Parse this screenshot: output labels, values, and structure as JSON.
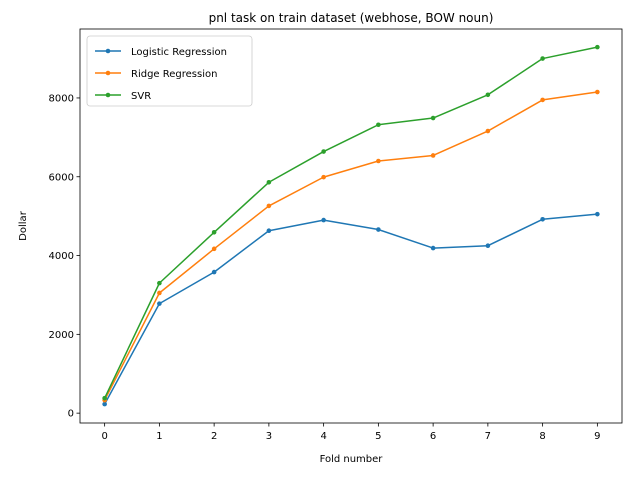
{
  "chart_data": {
    "type": "line",
    "title": "pnl task on train dataset (webhose, BOW noun)",
    "xlabel": "Fold number",
    "ylabel": "Dollar",
    "x": [
      0,
      1,
      2,
      3,
      4,
      5,
      6,
      7,
      8,
      9
    ],
    "xlim": [
      -0.45,
      9.45
    ],
    "ylim": [
      -250,
      9750
    ],
    "xticks": [
      0,
      1,
      2,
      3,
      4,
      5,
      6,
      7,
      8,
      9
    ],
    "yticks": [
      0,
      2000,
      4000,
      6000,
      8000
    ],
    "grid": false,
    "legend_position": "top-left",
    "series": [
      {
        "name": "Logistic Regression",
        "color": "#1f77b4",
        "values": [
          230,
          2780,
          3580,
          4630,
          4900,
          4660,
          4190,
          4250,
          4920,
          5050
        ]
      },
      {
        "name": "Ridge Regression",
        "color": "#ff7f0e",
        "values": [
          330,
          3050,
          4170,
          5260,
          5990,
          6400,
          6540,
          7160,
          7950,
          8150
        ]
      },
      {
        "name": "SVR",
        "color": "#2ca02c",
        "values": [
          380,
          3300,
          4590,
          5860,
          6640,
          7320,
          7490,
          8080,
          9000,
          9290
        ]
      }
    ]
  }
}
